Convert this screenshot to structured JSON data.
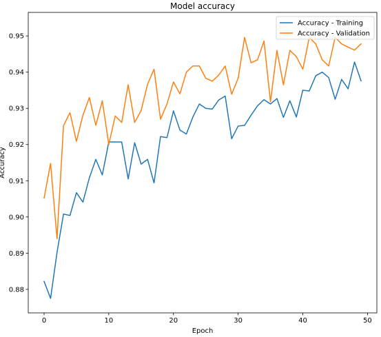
{
  "chart_data": {
    "type": "line",
    "title": "Model accuracy",
    "xlabel": "Epoch",
    "ylabel": "Accuracy",
    "xlim": [
      -2.45,
      51.45
    ],
    "ylim": [
      0.8735,
      0.9565
    ],
    "xticks": [
      0,
      10,
      20,
      30,
      40,
      50
    ],
    "xtick_labels": [
      "0",
      "10",
      "20",
      "30",
      "40",
      "50"
    ],
    "yticks": [
      0.88,
      0.89,
      0.9,
      0.91,
      0.92,
      0.93,
      0.94,
      0.95
    ],
    "ytick_labels": [
      "0.88",
      "0.89",
      "0.90",
      "0.91",
      "0.92",
      "0.93",
      "0.94",
      "0.95"
    ],
    "grid": false,
    "legend_position": "top-right",
    "x": [
      0,
      1,
      2,
      3,
      4,
      5,
      6,
      7,
      8,
      9,
      10,
      11,
      12,
      13,
      14,
      15,
      16,
      17,
      18,
      19,
      20,
      21,
      22,
      23,
      24,
      25,
      26,
      27,
      28,
      29,
      30,
      31,
      32,
      33,
      34,
      35,
      36,
      37,
      38,
      39,
      40,
      41,
      42,
      43,
      44,
      45,
      46,
      47,
      48,
      49
    ],
    "series": [
      {
        "name": "Accuracy - Training",
        "color": "#1f77b4",
        "values": [
          0.8822,
          0.8775,
          0.8902,
          0.9008,
          0.9004,
          0.9067,
          0.9041,
          0.9108,
          0.9159,
          0.9116,
          0.9207,
          0.9207,
          0.9207,
          0.9105,
          0.9205,
          0.9146,
          0.9159,
          0.9094,
          0.9222,
          0.9219,
          0.9293,
          0.924,
          0.9229,
          0.9276,
          0.9312,
          0.93,
          0.9298,
          0.9323,
          0.9334,
          0.9216,
          0.9251,
          0.9253,
          0.9281,
          0.9307,
          0.9324,
          0.9312,
          0.9327,
          0.9275,
          0.9321,
          0.9276,
          0.935,
          0.9348,
          0.939,
          0.94,
          0.9385,
          0.9325,
          0.938,
          0.9354,
          0.9428,
          0.9376
        ]
      },
      {
        "name": "Accuracy - Validation",
        "color": "#ff7f0e",
        "values": [
          0.9052,
          0.9148,
          0.894,
          0.9252,
          0.9288,
          0.9209,
          0.9281,
          0.933,
          0.9253,
          0.9321,
          0.92,
          0.9279,
          0.9261,
          0.9365,
          0.9261,
          0.9294,
          0.9367,
          0.9408,
          0.927,
          0.9312,
          0.9373,
          0.934,
          0.94,
          0.9417,
          0.9417,
          0.9383,
          0.9375,
          0.9392,
          0.9417,
          0.9339,
          0.9383,
          0.9496,
          0.9426,
          0.9434,
          0.9486,
          0.9318,
          0.946,
          0.9365,
          0.946,
          0.9443,
          0.9408,
          0.9496,
          0.9478,
          0.9434,
          0.9417,
          0.9496,
          0.9478,
          0.9469,
          0.9461,
          0.9478
        ]
      }
    ]
  }
}
